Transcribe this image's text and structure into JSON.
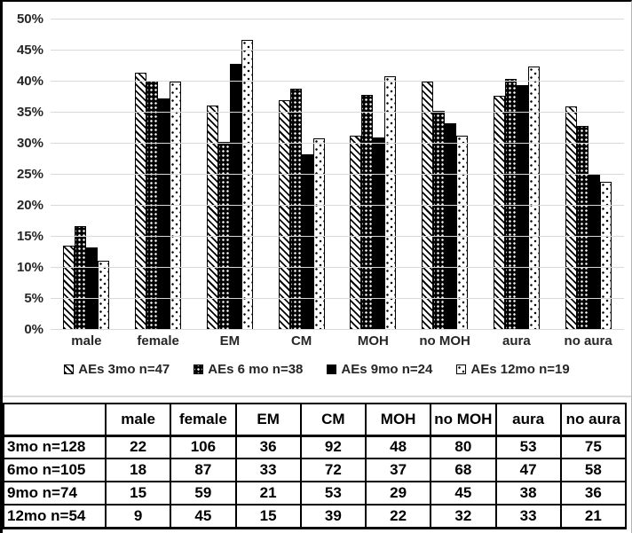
{
  "chart_data": {
    "type": "bar",
    "title": "",
    "xlabel": "",
    "ylabel": "",
    "ylim": [
      0,
      50
    ],
    "y_tick_step": 5,
    "y_tick_labels": [
      "0%",
      "5%",
      "10%",
      "15%",
      "20%",
      "25%",
      "30%",
      "35%",
      "40%",
      "45%",
      "50%"
    ],
    "grid": true,
    "gridline_color": "#d9d9d9",
    "legend_position": "bottom",
    "categories": [
      "male",
      "female",
      "EM",
      "CM",
      "MOH",
      "no MOH",
      "aura",
      "no aura"
    ],
    "series": [
      {
        "name": "AEs 3mo n=47",
        "pattern": "diagonal-stripes",
        "values": [
          13.6,
          41.5,
          36.1,
          37.0,
          31.3,
          40.0,
          37.7,
          36.0
        ]
      },
      {
        "name": "AEs 6 mo n=38",
        "pattern": "black-white-dots",
        "values": [
          16.7,
          40.2,
          30.3,
          38.9,
          37.8,
          35.3,
          40.4,
          32.8
        ]
      },
      {
        "name": "AEs 9mo n=24",
        "pattern": "solid-black",
        "values": [
          13.3,
          37.3,
          42.9,
          28.3,
          31.0,
          33.3,
          39.5,
          25.0
        ]
      },
      {
        "name": "AEs 12mo n=19",
        "pattern": "white-black-dots",
        "values": [
          11.1,
          40.0,
          46.7,
          30.8,
          40.9,
          31.3,
          42.4,
          23.8
        ]
      }
    ]
  },
  "table": {
    "col_headers": [
      "",
      "male",
      "female",
      "EM",
      "CM",
      "MOH",
      "no MOH",
      "aura",
      "no aura"
    ],
    "rows": [
      {
        "label": "3mo n=128",
        "values": [
          22,
          106,
          36,
          92,
          48,
          80,
          53,
          75
        ]
      },
      {
        "label": "6mo n=105",
        "values": [
          18,
          87,
          33,
          72,
          37,
          68,
          47,
          58
        ]
      },
      {
        "label": "9mo n=74",
        "values": [
          15,
          59,
          21,
          53,
          29,
          45,
          38,
          36
        ]
      },
      {
        "label": "12mo n=54",
        "values": [
          9,
          45,
          15,
          39,
          22,
          32,
          33,
          21
        ]
      }
    ]
  },
  "colors": {
    "bar_fill": "#000000",
    "gridline": "#d9d9d9",
    "axis_text": "#262626"
  }
}
